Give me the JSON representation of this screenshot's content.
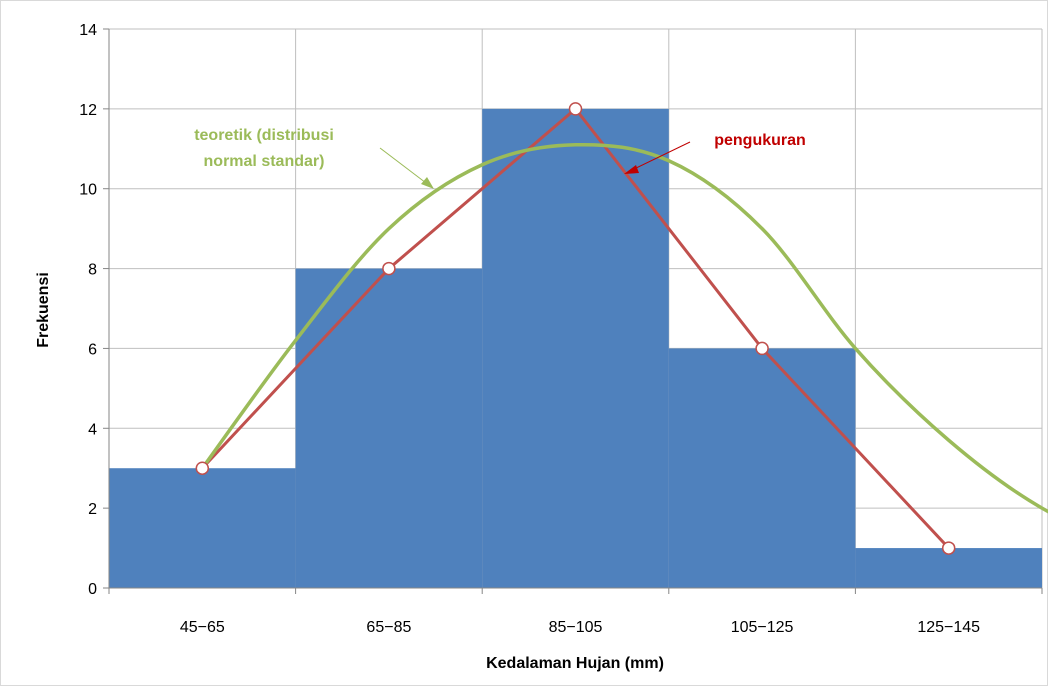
{
  "chart_data": {
    "type": "bar",
    "categories": [
      "45−65",
      "65−85",
      "85−105",
      "105−125",
      "125−145"
    ],
    "bar_values": [
      3,
      8,
      12,
      6,
      1
    ],
    "xlabel": "Kedalaman Hujan (mm)",
    "ylabel": "Frekuensi",
    "ylim": [
      0,
      14
    ],
    "yticks": [
      0,
      2,
      4,
      6,
      8,
      10,
      12,
      14
    ],
    "grid": true,
    "series": [
      {
        "name": "pengukuran",
        "type": "line",
        "values": [
          3,
          8,
          12,
          6,
          1
        ],
        "color": "#c0504d"
      },
      {
        "name": "teoretik (distribusi normal standar)",
        "type": "smooth-line",
        "x": [
          0.5,
          1.0,
          1.5,
          2.0,
          2.5,
          3.0,
          3.5,
          4.0,
          4.5,
          5.0,
          5.5
        ],
        "values": [
          3.0,
          6.2,
          9.0,
          10.6,
          11.1,
          10.7,
          9.0,
          6.0,
          3.7,
          2.0,
          1.0
        ],
        "color": "#9bbb59"
      }
    ],
    "bar_color": "#4f81bd",
    "annotations": [
      {
        "text_lines": [
          "teoretik (distribusi",
          "normal standar)"
        ],
        "color": "#9bbb59",
        "target_series": 1
      },
      {
        "text_lines": [
          "pengukuran"
        ],
        "color": "#c00000",
        "target_series": 0
      }
    ]
  }
}
